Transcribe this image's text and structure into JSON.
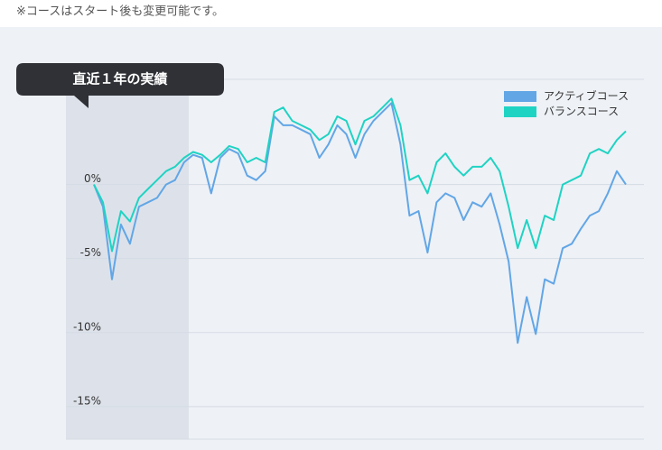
{
  "note": "※コースはスタート後も変更可能です。",
  "chart_data": {
    "type": "line",
    "annotation": "直近１年の実績",
    "ylim": [
      -17.2,
      7.1
    ],
    "yticks": [
      {
        "value": 0,
        "label": "0%"
      },
      {
        "value": -5,
        "label": "-5%"
      },
      {
        "value": -10,
        "label": "-10%"
      },
      {
        "value": -15,
        "label": "-15%"
      }
    ],
    "grid": true,
    "legend": "top-right",
    "series": [
      {
        "name": "アクティブコース",
        "color": "#62a6e6",
        "values": [
          0,
          -1.5,
          -6.4,
          -2.7,
          -4,
          -1.5,
          -1.2,
          -0.9,
          0,
          0.3,
          1.5,
          2.0,
          1.8,
          -0.6,
          1.8,
          2.4,
          2.1,
          0.6,
          0.3,
          0.9,
          4.6,
          4.0,
          4.0,
          3.7,
          3.4,
          1.8,
          2.7,
          4.0,
          3.4,
          1.8,
          3.4,
          4.3,
          4.9,
          5.5,
          2.7,
          -2.1,
          -1.8,
          -4.6,
          -1.2,
          -0.6,
          -0.9,
          -2.4,
          -1.2,
          -1.5,
          -0.6,
          -2.7,
          -5.2,
          -10.7,
          -7.6,
          -10.1,
          -6.4,
          -6.7,
          -4.3,
          -4.0,
          -3.0,
          -2.1,
          -1.8,
          -0.6,
          0.9,
          0
        ]
      },
      {
        "name": "バランスコース",
        "color": "#1fd3c3",
        "values": [
          0,
          -1.2,
          -4.5,
          -1.8,
          -2.5,
          -0.9,
          -0.3,
          0.3,
          0.9,
          1.2,
          1.8,
          2.2,
          2.0,
          1.5,
          2.0,
          2.6,
          2.4,
          1.5,
          1.8,
          1.5,
          4.9,
          5.2,
          4.3,
          4.0,
          3.7,
          3.0,
          3.4,
          4.6,
          4.3,
          2.7,
          4.3,
          4.6,
          5.2,
          5.8,
          4.0,
          0.3,
          0.6,
          -0.6,
          1.5,
          2.1,
          1.2,
          0.6,
          1.2,
          1.2,
          1.8,
          0.9,
          -1.5,
          -4.3,
          -2.4,
          -4.3,
          -2.1,
          -2.4,
          0.0,
          0.3,
          0.6,
          2.1,
          2.4,
          2.1,
          3.0,
          3.6
        ]
      }
    ]
  }
}
